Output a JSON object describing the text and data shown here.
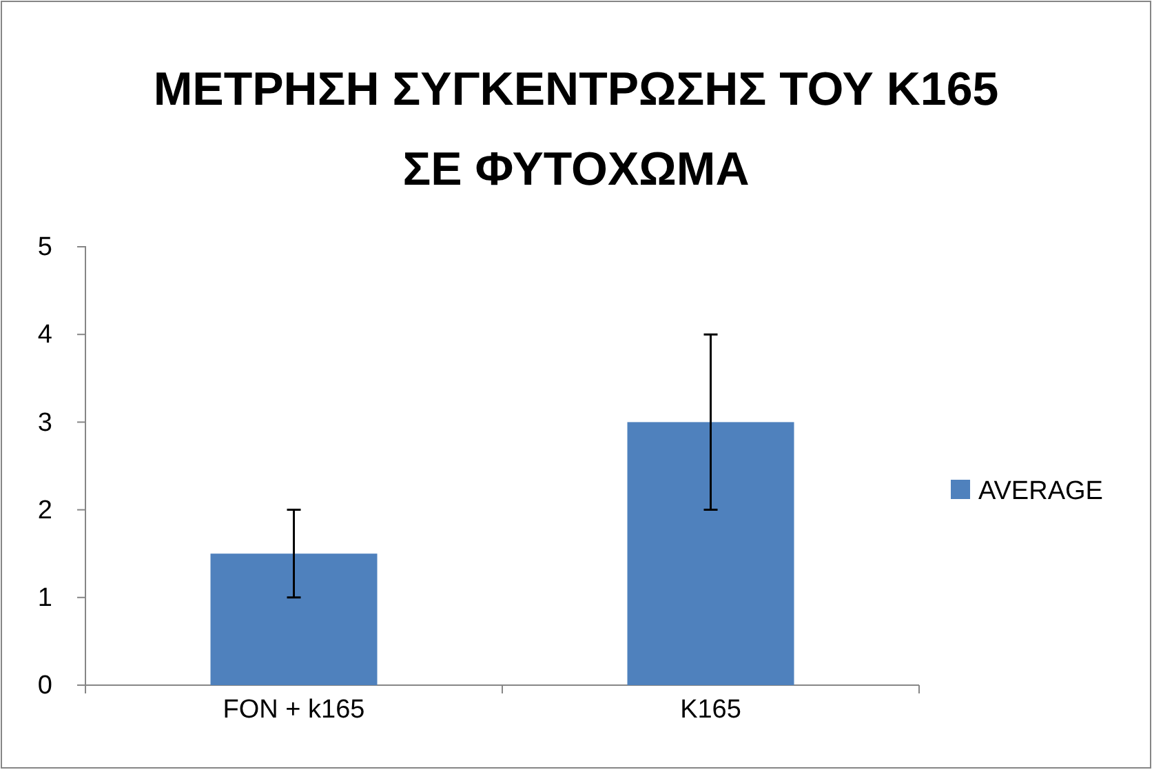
{
  "chart_data": {
    "type": "bar",
    "title": "ΜΕΤΡΗΣΗ ΣΥΓΚΕΝΤΡΩΣΗΣ ΤΟΥ Κ165 ΣΕ ΦΥΤΟΧΩΜΑ",
    "categories": [
      "FON + k165",
      "K165"
    ],
    "series": [
      {
        "name": "AVERAGE",
        "color": "#4f81bd",
        "values": [
          1.5,
          3
        ],
        "errors": [
          0.5,
          1
        ]
      }
    ],
    "ylim": [
      0,
      5
    ],
    "yticks": [
      0,
      1,
      2,
      3,
      4,
      5
    ],
    "grid": false,
    "legend": "right"
  }
}
